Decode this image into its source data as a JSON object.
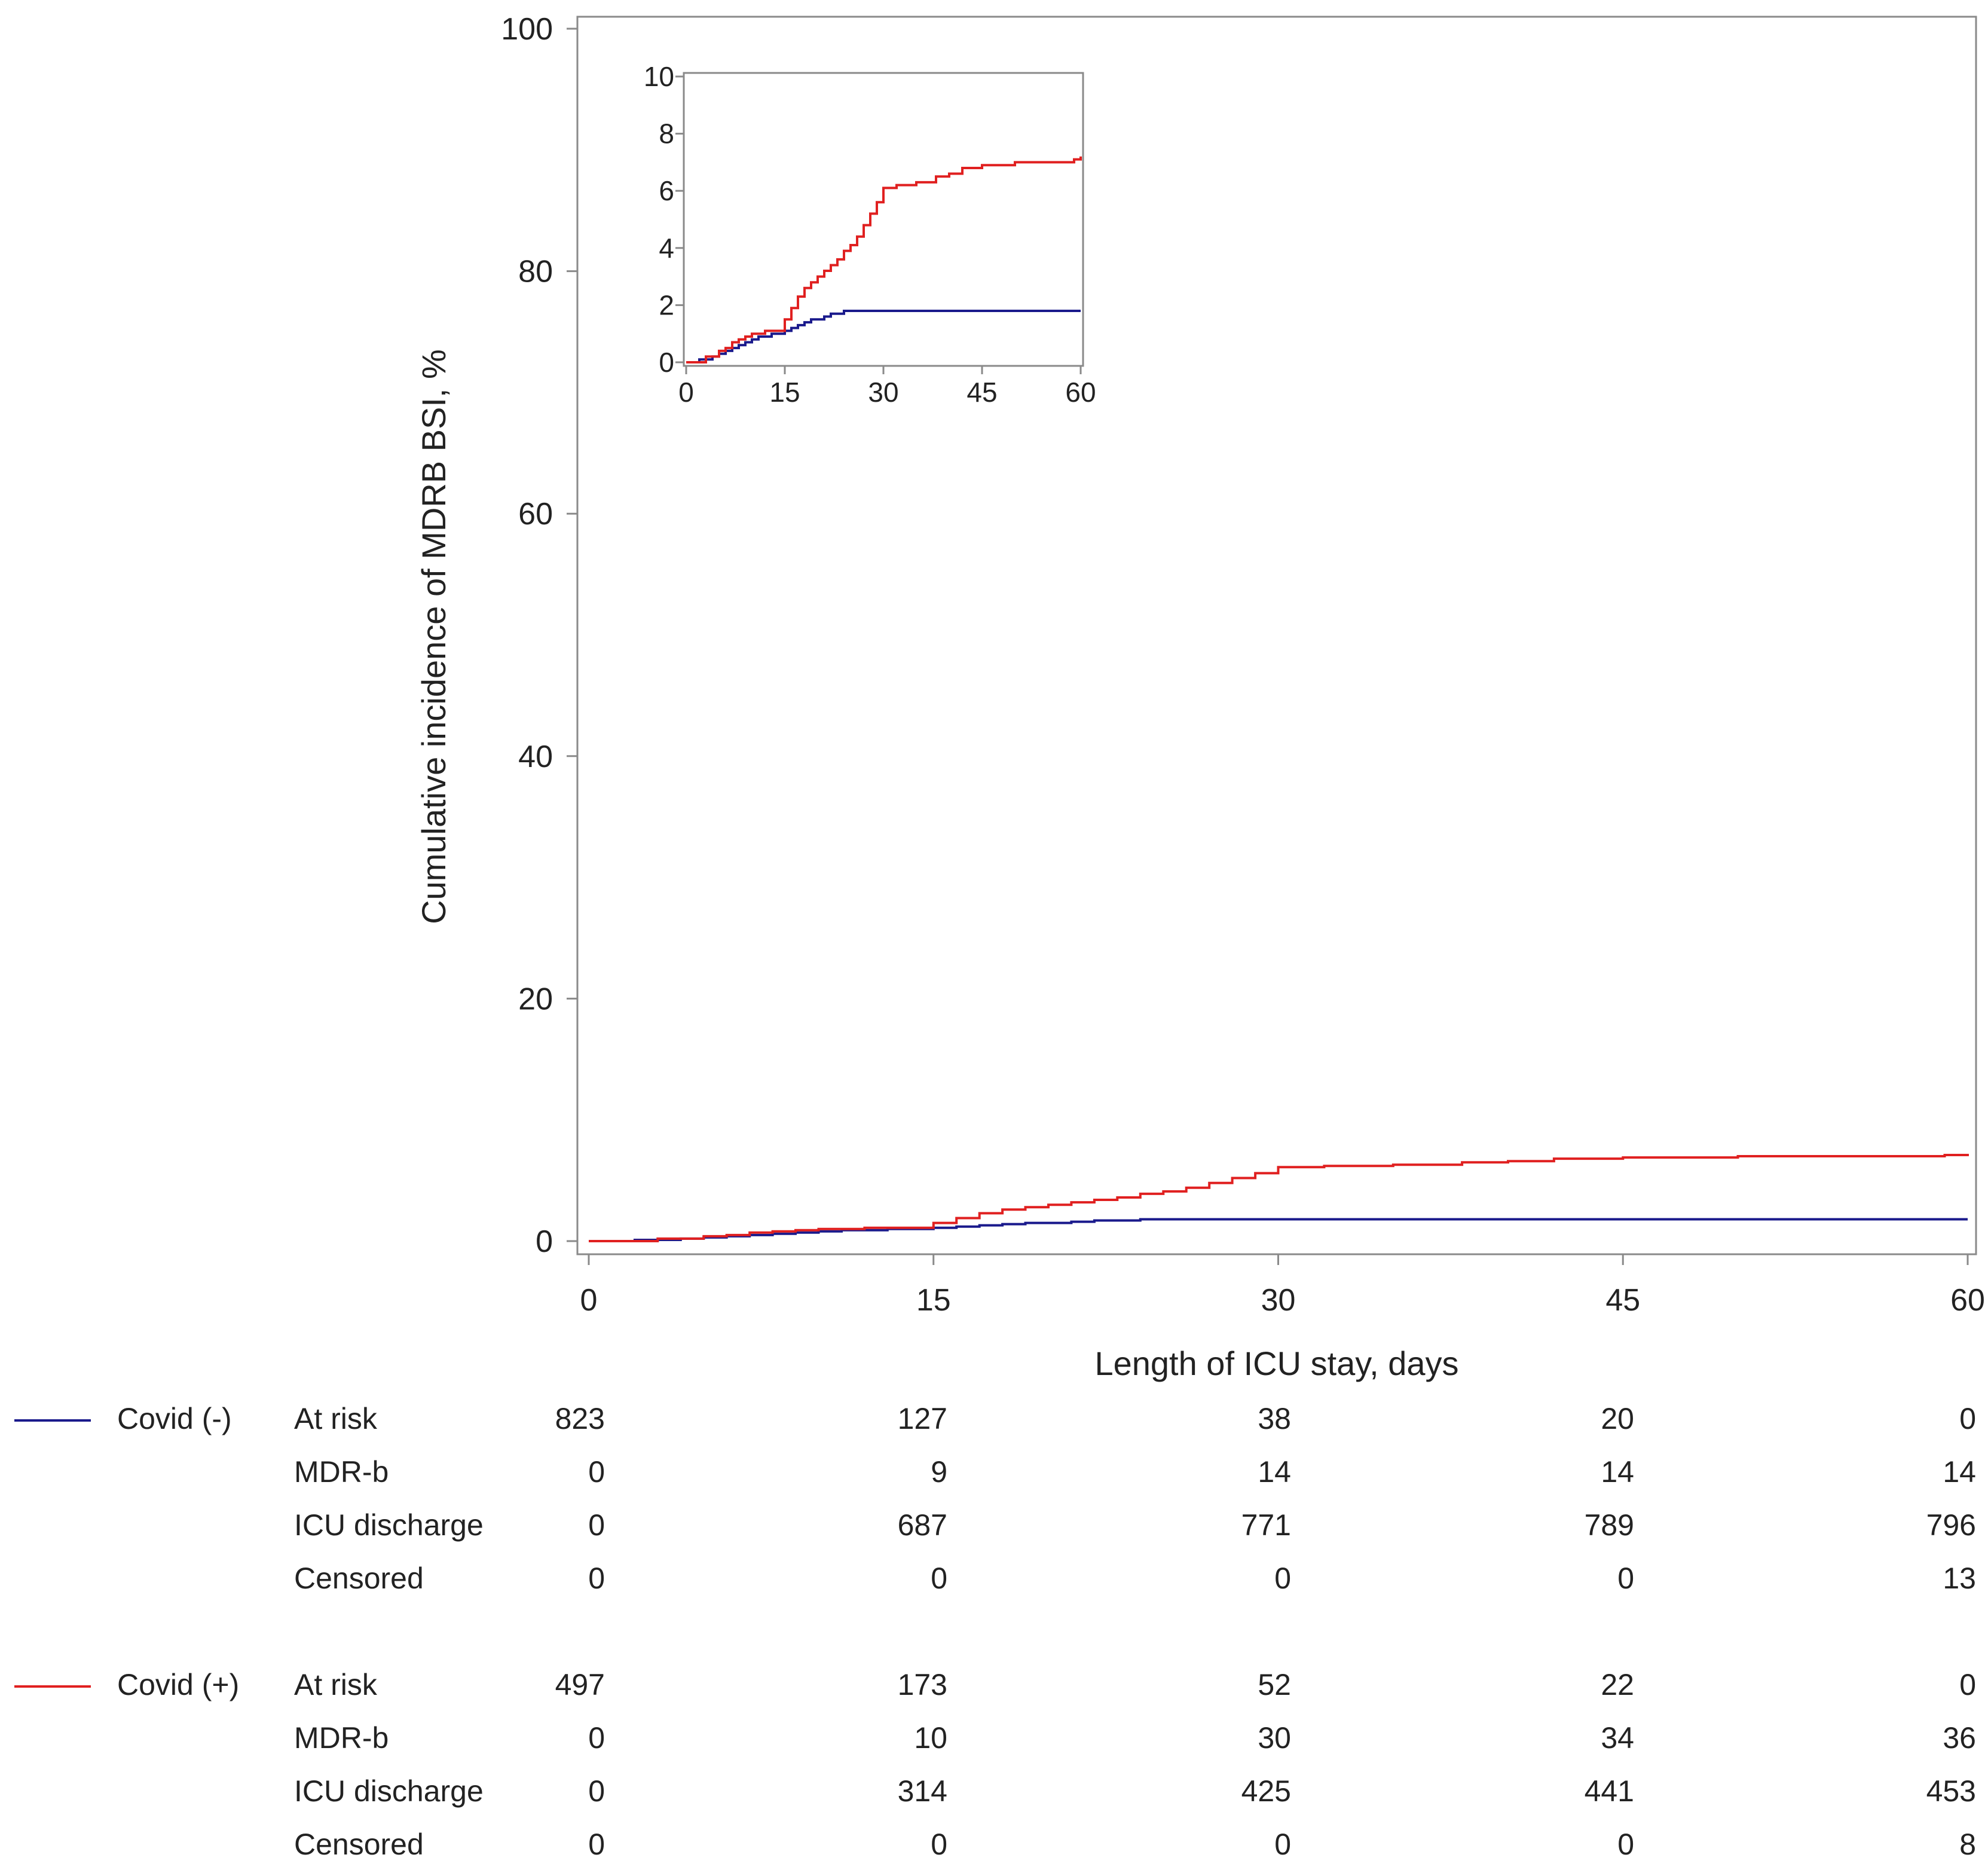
{
  "chart_data": {
    "type": "line",
    "subtype": "cumulative-incidence-step",
    "xlabel": "Length of ICU stay, days",
    "ylabel": "Cumulative incidence of MDRB BSI, %",
    "xlim": [
      0,
      60
    ],
    "ylim": [
      0,
      100
    ],
    "xticks": [
      "0",
      "15",
      "30",
      "45",
      "60"
    ],
    "yticks": [
      "0",
      "20",
      "40",
      "60",
      "80",
      "100"
    ],
    "grid": false,
    "legend_placement": "bottom-left",
    "series": [
      {
        "name": "Covid (-)",
        "color": "#1a1a8c",
        "x": [
          0,
          2,
          4,
          5,
          6,
          7,
          8,
          9,
          10,
          11,
          12,
          13,
          14,
          15,
          16,
          17,
          18,
          19,
          20,
          21,
          22,
          24,
          28,
          30,
          35,
          40,
          45,
          50,
          55,
          60
        ],
        "y": [
          0,
          0.1,
          0.2,
          0.3,
          0.4,
          0.5,
          0.6,
          0.7,
          0.8,
          0.9,
          0.9,
          1.0,
          1.0,
          1.1,
          1.2,
          1.3,
          1.4,
          1.5,
          1.5,
          1.6,
          1.7,
          1.8,
          1.8,
          1.8,
          1.8,
          1.8,
          1.8,
          1.8,
          1.8,
          1.8
        ]
      },
      {
        "name": "Covid (+)",
        "color": "#e02020",
        "x": [
          0,
          3,
          5,
          6,
          7,
          8,
          9,
          10,
          12,
          14,
          15,
          16,
          17,
          18,
          19,
          20,
          21,
          22,
          23,
          24,
          25,
          26,
          27,
          28,
          29,
          30,
          32,
          35,
          38,
          40,
          42,
          45,
          50,
          55,
          58,
          59,
          60
        ],
        "y": [
          0,
          0.2,
          0.4,
          0.5,
          0.7,
          0.8,
          0.9,
          1.0,
          1.1,
          1.1,
          1.5,
          1.9,
          2.3,
          2.6,
          2.8,
          3.0,
          3.2,
          3.4,
          3.6,
          3.9,
          4.1,
          4.4,
          4.8,
          5.2,
          5.6,
          6.1,
          6.2,
          6.3,
          6.5,
          6.6,
          6.8,
          6.9,
          7.0,
          7.0,
          7.0,
          7.1,
          7.2
        ]
      }
    ],
    "inset": {
      "xlim": [
        0,
        60
      ],
      "ylim": [
        0,
        10
      ],
      "xticks": [
        "0",
        "15",
        "30",
        "45",
        "60"
      ],
      "yticks": [
        "0",
        "2",
        "4",
        "6",
        "8",
        "10"
      ]
    },
    "risk_table": {
      "columns": [
        "0",
        "15",
        "30",
        "45",
        "60"
      ],
      "groups": [
        {
          "name": "Covid (-)",
          "color": "#1a1a8c",
          "rows": [
            {
              "label": "At risk",
              "values": [
                "823",
                "127",
                "38",
                "20",
                "0"
              ]
            },
            {
              "label": "MDR-b",
              "values": [
                "0",
                "9",
                "14",
                "14",
                "14"
              ]
            },
            {
              "label": "ICU discharge",
              "values": [
                "0",
                "687",
                "771",
                "789",
                "796"
              ]
            },
            {
              "label": "Censored",
              "values": [
                "0",
                "0",
                "0",
                "0",
                "13"
              ]
            }
          ]
        },
        {
          "name": "Covid (+)",
          "color": "#e02020",
          "rows": [
            {
              "label": "At risk",
              "values": [
                "497",
                "173",
                "52",
                "22",
                "0"
              ]
            },
            {
              "label": "MDR-b",
              "values": [
                "0",
                "10",
                "30",
                "34",
                "36"
              ]
            },
            {
              "label": "ICU discharge",
              "values": [
                "0",
                "314",
                "425",
                "441",
                "453"
              ]
            },
            {
              "label": "Censored",
              "values": [
                "0",
                "0",
                "0",
                "0",
                "8"
              ]
            }
          ]
        }
      ]
    }
  }
}
